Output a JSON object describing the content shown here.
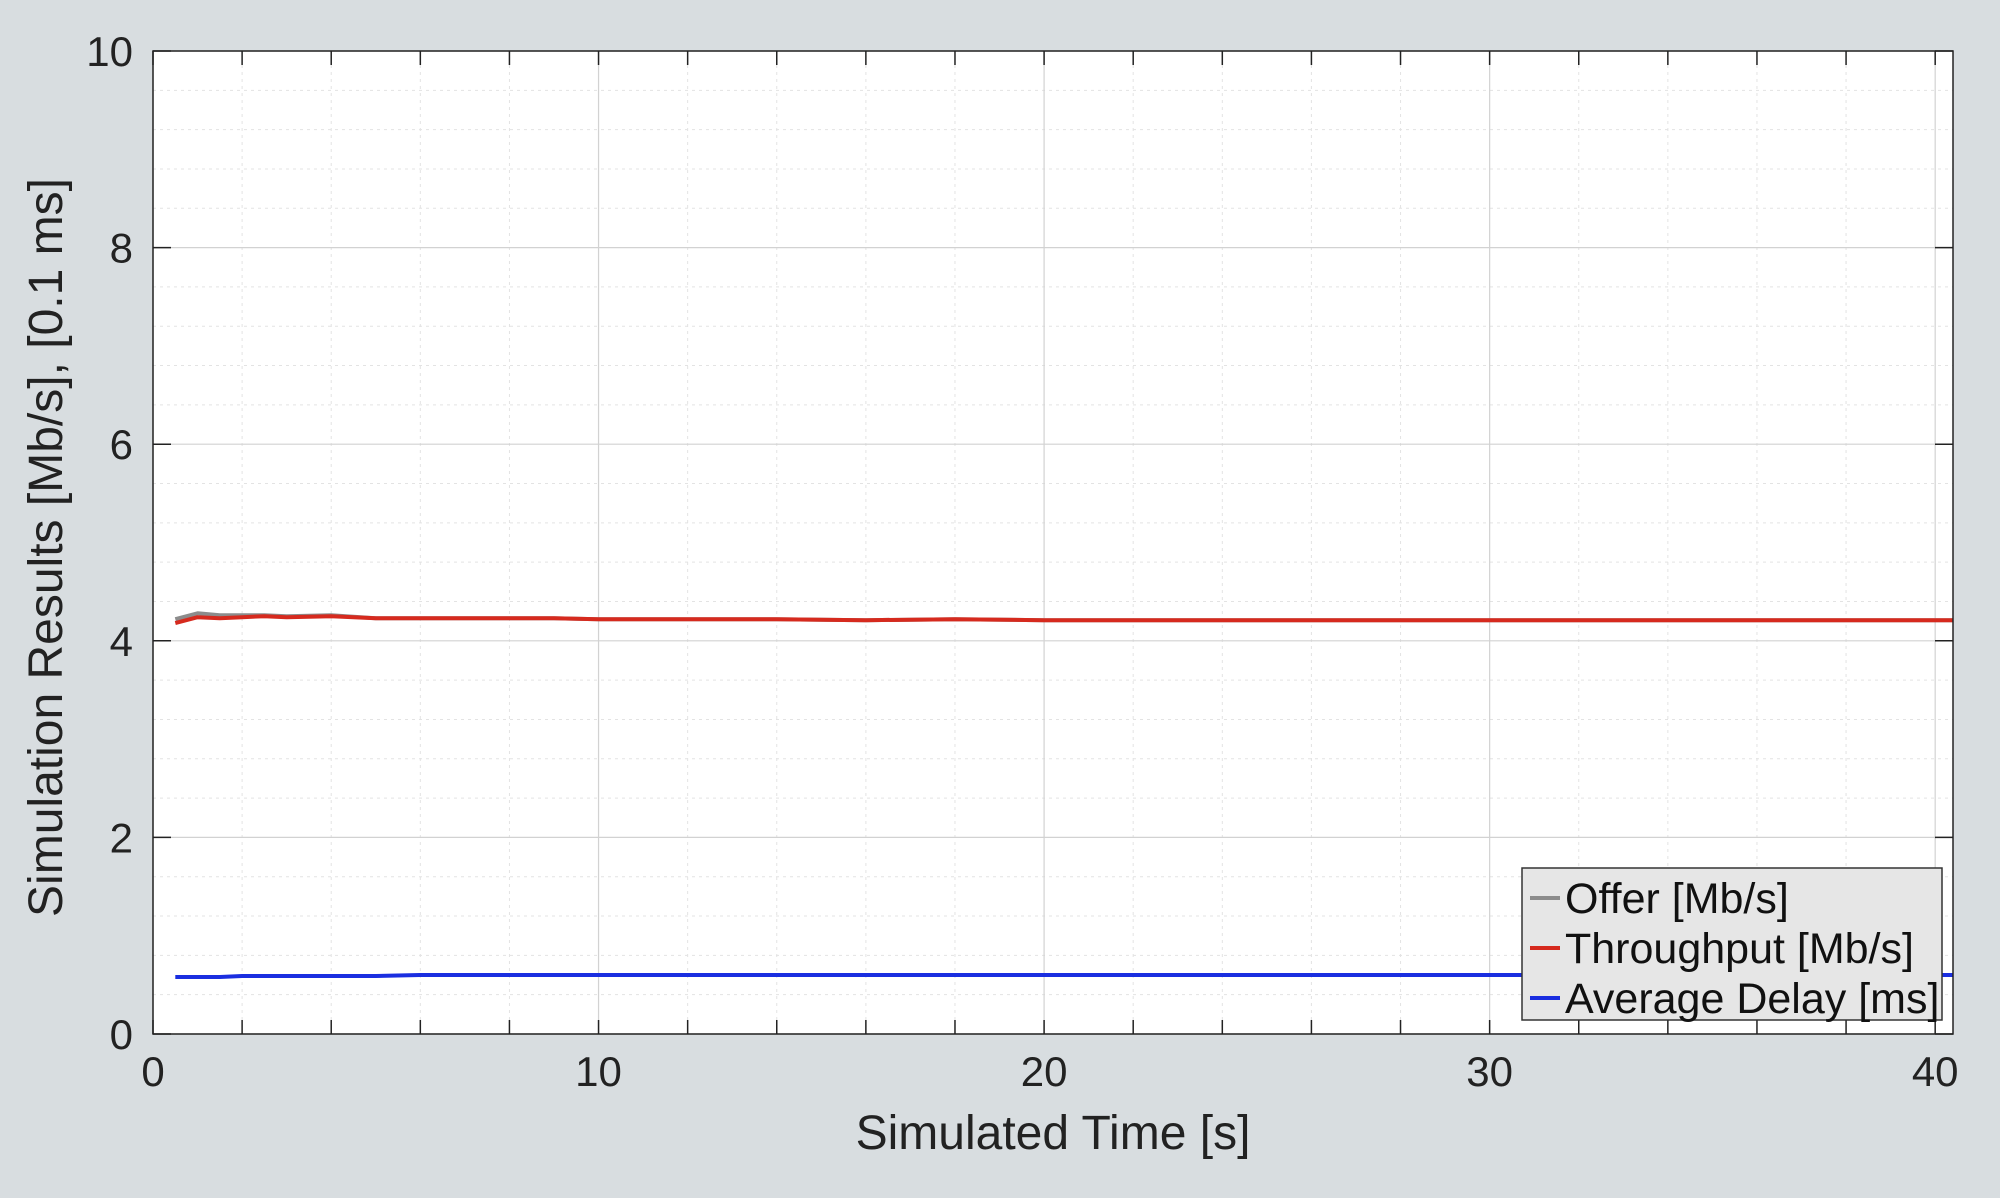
{
  "chart_data": {
    "type": "line",
    "title": "",
    "xlabel": "Simulated Time [s]",
    "ylabel": "Simulation Results [Mb/s], [0.1 ms]",
    "xlim": [
      0,
      40.4
    ],
    "ylim": [
      0,
      10
    ],
    "xticks": [
      0,
      10,
      20,
      30,
      40
    ],
    "yticks": [
      0,
      2,
      4,
      6,
      8,
      10
    ],
    "grid": true,
    "minor_grid": true,
    "legend_position": "bottom-right",
    "series": [
      {
        "name": "Offer [Mb/s]",
        "color": "#8c8c8c",
        "x": [
          0.5,
          1.0,
          1.5,
          2.0,
          2.5,
          3.0,
          4.0,
          5.0,
          6.0,
          7.0,
          8.0,
          9.0,
          10.0,
          12.0,
          14.0,
          16.0,
          18.0,
          20.0,
          22.0,
          24.0,
          26.0,
          28.0,
          30.0,
          32.0,
          34.0,
          36.0,
          38.0,
          40.4
        ],
        "y": [
          4.22,
          4.28,
          4.26,
          4.26,
          4.26,
          4.25,
          4.26,
          4.23,
          4.23,
          4.23,
          4.23,
          4.23,
          4.22,
          4.22,
          4.22,
          4.21,
          4.22,
          4.21,
          4.21,
          4.21,
          4.21,
          4.21,
          4.21,
          4.21,
          4.21,
          4.21,
          4.21,
          4.21
        ]
      },
      {
        "name": "Throughput [Mb/s]",
        "color": "#d62a1e",
        "x": [
          0.5,
          1.0,
          1.5,
          2.0,
          2.5,
          3.0,
          4.0,
          5.0,
          6.0,
          7.0,
          8.0,
          9.0,
          10.0,
          12.0,
          14.0,
          16.0,
          18.0,
          20.0,
          22.0,
          24.0,
          26.0,
          28.0,
          30.0,
          32.0,
          34.0,
          36.0,
          38.0,
          40.4
        ],
        "y": [
          4.18,
          4.24,
          4.23,
          4.24,
          4.25,
          4.24,
          4.25,
          4.23,
          4.23,
          4.23,
          4.23,
          4.23,
          4.22,
          4.22,
          4.22,
          4.21,
          4.22,
          4.21,
          4.21,
          4.21,
          4.21,
          4.21,
          4.21,
          4.21,
          4.21,
          4.21,
          4.21,
          4.21
        ]
      },
      {
        "name": "Average Delay [ms]",
        "color": "#1a2ee0",
        "x": [
          0.5,
          1.0,
          1.5,
          2.0,
          3.0,
          4.0,
          5.0,
          6.0,
          7.0,
          8.0,
          9.0,
          10.0,
          12.0,
          14.0,
          16.0,
          18.0,
          20.0,
          22.0,
          24.0,
          26.0,
          28.0,
          30.0,
          32.0,
          34.0,
          36.0,
          38.0,
          40.4
        ],
        "y": [
          0.58,
          0.58,
          0.58,
          0.59,
          0.59,
          0.59,
          0.59,
          0.6,
          0.6,
          0.6,
          0.6,
          0.6,
          0.6,
          0.6,
          0.6,
          0.6,
          0.6,
          0.6,
          0.6,
          0.6,
          0.6,
          0.6,
          0.6,
          0.6,
          0.6,
          0.6,
          0.6
        ]
      }
    ]
  }
}
